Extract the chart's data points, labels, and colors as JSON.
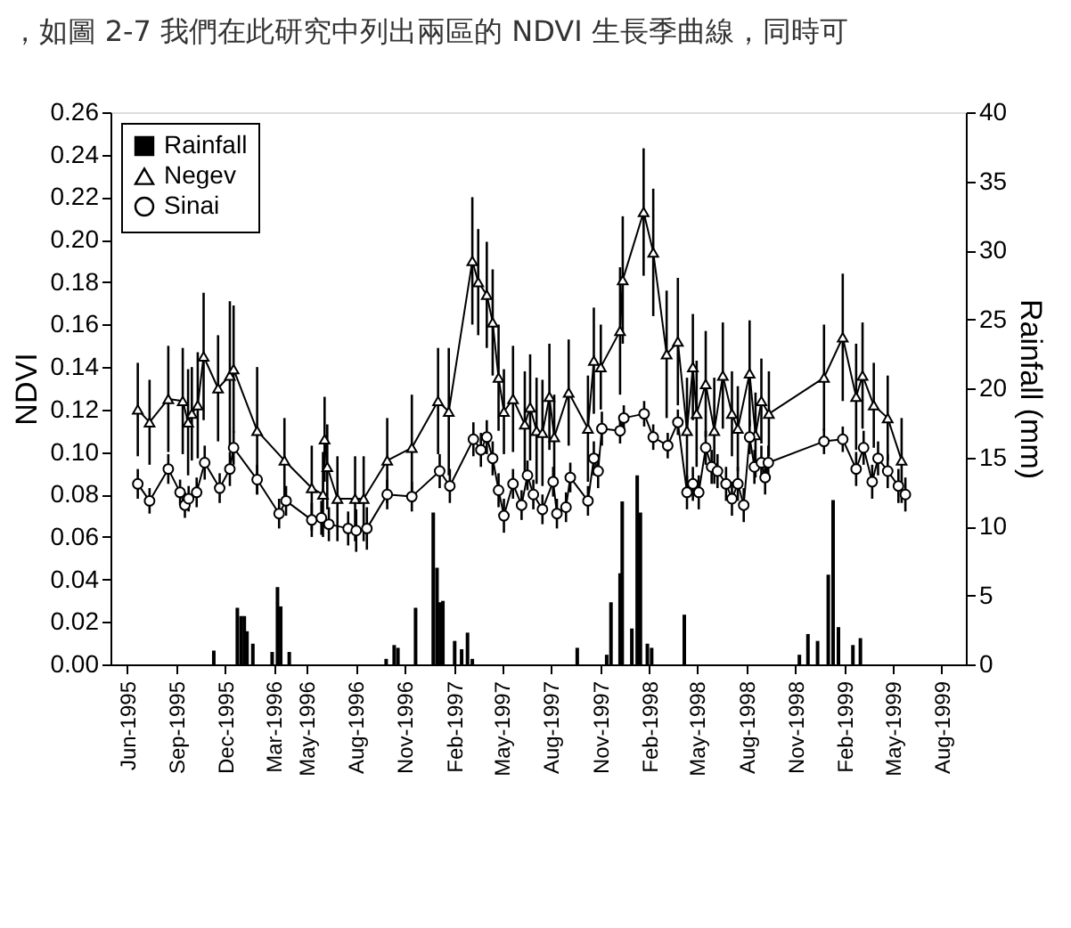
{
  "chart_data": {
    "type": "line",
    "annotations": [
      "，如圖 2-7 我們在此研究中列出兩區的 NDVI 生長季曲線，同時可"
    ],
    "ylabel": "NDVI",
    "y2label": "Rainfall (mm)",
    "xlim": [
      "1995-05-01",
      "1999-09-15"
    ],
    "xticks": [
      {
        "value": "1995-06-01",
        "label": "Jun-1995"
      },
      {
        "value": "1995-09-01",
        "label": "Sep-1995"
      },
      {
        "value": "1995-12-01",
        "label": "Dec-1995"
      },
      {
        "value": "1996-03-01",
        "label": "Mar-1996"
      },
      {
        "value": "1996-05-01",
        "label": "May-1996"
      },
      {
        "value": "1996-08-01",
        "label": "Aug-1996"
      },
      {
        "value": "1996-11-01",
        "label": "Nov-1996"
      },
      {
        "value": "1997-02-01",
        "label": "Feb-1997"
      },
      {
        "value": "1997-05-01",
        "label": "May-1997"
      },
      {
        "value": "1997-08-01",
        "label": "Aug-1997"
      },
      {
        "value": "1997-11-01",
        "label": "Nov-1997"
      },
      {
        "value": "1998-02-01",
        "label": "Feb-1998"
      },
      {
        "value": "1998-05-01",
        "label": "May-1998"
      },
      {
        "value": "1998-08-01",
        "label": "Aug-1998"
      },
      {
        "value": "1998-11-01",
        "label": "Nov-1998"
      },
      {
        "value": "1999-02-01",
        "label": "Feb-1999"
      },
      {
        "value": "1999-05-01",
        "label": "May-1999"
      },
      {
        "value": "1999-08-01",
        "label": "Aug-1999"
      }
    ],
    "ylim": [
      0,
      0.26
    ],
    "yticks": [
      {
        "value": 0,
        "label": "0.00"
      },
      {
        "value": 0.02,
        "label": "0.02"
      },
      {
        "value": 0.04,
        "label": "0.04"
      },
      {
        "value": 0.06,
        "label": "0.06"
      },
      {
        "value": 0.08,
        "label": "0.08"
      },
      {
        "value": 0.1,
        "label": "0.10"
      },
      {
        "value": 0.12,
        "label": "0.12"
      },
      {
        "value": 0.14,
        "label": "0.14"
      },
      {
        "value": 0.16,
        "label": "0.16"
      },
      {
        "value": 0.18,
        "label": "0.18"
      },
      {
        "value": 0.2,
        "label": "0.20"
      },
      {
        "value": 0.22,
        "label": "0.22"
      },
      {
        "value": 0.24,
        "label": "0.24"
      },
      {
        "value": 0.26,
        "label": "0.26"
      }
    ],
    "y2lim": [
      0,
      40
    ],
    "y2ticks": [
      0,
      5,
      10,
      15,
      20,
      25,
      30,
      35,
      40
    ],
    "grid": false,
    "legend": "top left",
    "line_style": "solid",
    "series": [
      {
        "name": "Rainfall",
        "type": "bar",
        "axis": "y2",
        "color": "#000000",
        "marker": "square",
        "x": [
          "1995-11-10",
          "1995-12-24",
          "1995-12-31",
          "1996-01-06",
          "1996-01-11",
          "1996-01-22",
          "1996-02-27",
          "1996-03-08",
          "1996-03-14",
          "1996-03-30",
          "1996-09-27",
          "1996-10-12",
          "1996-10-19",
          "1996-11-21",
          "1996-12-24",
          "1996-12-31",
          "1997-01-06",
          "1997-01-11",
          "1997-02-02",
          "1997-02-15",
          "1997-02-26",
          "1997-03-07",
          "1997-09-19",
          "1997-11-13",
          "1997-11-21",
          "1997-12-08",
          "1997-12-12",
          "1997-12-30",
          "1998-01-09",
          "1998-01-15",
          "1998-01-28",
          "1998-02-05",
          "1998-04-07",
          "1998-11-08",
          "1998-11-24",
          "1998-12-12",
          "1999-01-01",
          "1999-01-10",
          "1999-01-20",
          "1999-02-16",
          "1999-03-02"
        ],
        "values": [
          1.0,
          4.1,
          3.5,
          3.5,
          2.4,
          1.5,
          0.9,
          5.6,
          4.2,
          0.9,
          0.4,
          1.4,
          1.2,
          4.1,
          11.0,
          7.0,
          4.5,
          4.6,
          1.7,
          1.1,
          2.3,
          0.4,
          1.2,
          0.7,
          4.5,
          6.6,
          11.8,
          2.6,
          13.7,
          11.0,
          1.5,
          1.2,
          3.6,
          0.7,
          2.2,
          1.7,
          6.5,
          11.9,
          2.7,
          1.4,
          1.9
        ]
      },
      {
        "name": "Negev",
        "type": "line",
        "marker": "triangle",
        "color": "#000000",
        "x": [
          "1995-06-21",
          "1995-07-13",
          "1995-08-17",
          "1995-09-13",
          "1995-09-23",
          "1995-09-30",
          "1995-10-11",
          "1995-10-22",
          "1995-11-18",
          "1995-12-10",
          "1995-12-17",
          "1996-01-30",
          "1996-03-21",
          "1996-05-11",
          "1996-06-01",
          "1996-06-04",
          "1996-06-09",
          "1996-06-28",
          "1996-07-31",
          "1996-08-16",
          "1996-09-29",
          "1996-11-14",
          "1997-01-02",
          "1997-01-22",
          "1997-03-07",
          "1997-03-18",
          "1997-04-03",
          "1997-04-14",
          "1997-04-25",
          "1997-05-05",
          "1997-05-22",
          "1997-06-13",
          "1997-06-23",
          "1997-07-05",
          "1997-07-16",
          "1997-07-29",
          "1997-08-07",
          "1997-09-03",
          "1997-10-09",
          "1997-10-20",
          "1997-11-02",
          "1997-12-08",
          "1997-12-13",
          "1998-01-21",
          "1998-02-08",
          "1998-03-05",
          "1998-03-26",
          "1998-04-12",
          "1998-04-23",
          "1998-04-30",
          "1998-05-17",
          "1998-06-02",
          "1998-06-18",
          "1998-07-05",
          "1998-07-16",
          "1998-08-07",
          "1998-08-18",
          "1998-08-29",
          "1998-09-12",
          "1998-12-24",
          "1999-01-28",
          "1999-02-22",
          "1999-03-06",
          "1999-03-27",
          "1999-04-22",
          "1999-05-18"
        ],
        "values": [
          0.12,
          0.114,
          0.125,
          0.124,
          0.114,
          0.118,
          0.122,
          0.145,
          0.13,
          0.136,
          0.139,
          0.11,
          0.096,
          0.083,
          0.08,
          0.106,
          0.093,
          0.078,
          0.078,
          0.078,
          0.096,
          0.102,
          0.124,
          0.119,
          0.19,
          0.18,
          0.174,
          0.161,
          0.135,
          0.119,
          0.125,
          0.113,
          0.121,
          0.11,
          0.109,
          0.126,
          0.107,
          0.128,
          0.111,
          0.143,
          0.14,
          0.157,
          0.181,
          0.213,
          0.194,
          0.146,
          0.152,
          0.11,
          0.14,
          0.118,
          0.132,
          0.11,
          0.136,
          0.118,
          0.111,
          0.137,
          0.108,
          0.124,
          0.118,
          0.135,
          0.154,
          0.126,
          0.136,
          0.122,
          0.116,
          0.096
        ],
        "errors": [
          0.022,
          0.02,
          0.025,
          0.025,
          0.025,
          0.022,
          0.025,
          0.03,
          0.025,
          0.035,
          0.03,
          0.03,
          0.02,
          0.02,
          0.02,
          0.02,
          0.02,
          0.02,
          0.02,
          0.02,
          0.02,
          0.025,
          0.025,
          0.03,
          0.03,
          0.025,
          0.025,
          0.025,
          0.025,
          0.02,
          0.025,
          0.025,
          0.025,
          0.025,
          0.025,
          0.025,
          0.02,
          0.025,
          0.025,
          0.025,
          0.02,
          0.03,
          0.03,
          0.03,
          0.03,
          0.03,
          0.03,
          0.025,
          0.025,
          0.025,
          0.025,
          0.025,
          0.025,
          0.02,
          0.02,
          0.025,
          0.02,
          0.02,
          0.02,
          0.025,
          0.03,
          0.025,
          0.025,
          0.02,
          0.02,
          0.02
        ]
      },
      {
        "name": "Sinai",
        "type": "line",
        "marker": "circle",
        "color": "#000000",
        "x": [
          "1995-06-21",
          "1995-07-13",
          "1995-08-17",
          "1995-09-08",
          "1995-09-17",
          "1995-09-24",
          "1995-10-09",
          "1995-10-24",
          "1995-11-21",
          "1995-12-10",
          "1995-12-17",
          "1996-01-30",
          "1996-03-11",
          "1996-03-24",
          "1996-05-11",
          "1996-05-29",
          "1996-06-12",
          "1996-07-18",
          "1996-08-02",
          "1996-08-22",
          "1996-09-29",
          "1996-11-14",
          "1997-01-05",
          "1997-01-24",
          "1997-03-09",
          "1997-03-23",
          "1997-04-03",
          "1997-04-14",
          "1997-04-25",
          "1997-05-05",
          "1997-05-22",
          "1997-06-07",
          "1997-06-18",
          "1997-06-29",
          "1997-07-16",
          "1997-08-05",
          "1997-08-12",
          "1997-08-29",
          "1997-09-06",
          "1997-10-09",
          "1997-10-20",
          "1997-10-28",
          "1997-11-04",
          "1997-12-08",
          "1997-12-15",
          "1998-01-22",
          "1998-02-08",
          "1998-03-07",
          "1998-03-26",
          "1998-04-12",
          "1998-04-23",
          "1998-05-04",
          "1998-05-17",
          "1998-05-28",
          "1998-06-08",
          "1998-06-24",
          "1998-07-05",
          "1998-07-16",
          "1998-07-27",
          "1998-08-07",
          "1998-08-16",
          "1998-08-29",
          "1998-09-05",
          "1998-09-11",
          "1998-12-24",
          "1999-01-28",
          "1999-02-22",
          "1999-03-08",
          "1999-03-24",
          "1999-04-04",
          "1999-04-22",
          "1999-05-12",
          "1999-05-25"
        ],
        "values": [
          0.085,
          0.077,
          0.092,
          0.081,
          0.075,
          0.078,
          0.081,
          0.095,
          0.083,
          0.092,
          0.102,
          0.087,
          0.071,
          0.077,
          0.068,
          0.069,
          0.066,
          0.064,
          0.063,
          0.064,
          0.08,
          0.079,
          0.091,
          0.084,
          0.106,
          0.101,
          0.107,
          0.097,
          0.082,
          0.07,
          0.085,
          0.075,
          0.089,
          0.08,
          0.073,
          0.086,
          0.071,
          0.074,
          0.088,
          0.077,
          0.097,
          0.091,
          0.111,
          0.11,
          0.116,
          0.118,
          0.107,
          0.103,
          0.114,
          0.081,
          0.085,
          0.081,
          0.102,
          0.093,
          0.091,
          0.085,
          0.078,
          0.085,
          0.075,
          0.107,
          0.093,
          0.095,
          0.088,
          0.095,
          0.105,
          0.106,
          0.092,
          0.102,
          0.086,
          0.097,
          0.091,
          0.084,
          0.08
        ],
        "errors": [
          0.007,
          0.006,
          0.007,
          0.006,
          0.006,
          0.006,
          0.007,
          0.008,
          0.007,
          0.008,
          0.008,
          0.007,
          0.007,
          0.007,
          0.008,
          0.008,
          0.008,
          0.008,
          0.01,
          0.01,
          0.007,
          0.007,
          0.008,
          0.008,
          0.008,
          0.008,
          0.008,
          0.008,
          0.008,
          0.008,
          0.007,
          0.007,
          0.007,
          0.007,
          0.007,
          0.007,
          0.007,
          0.007,
          0.007,
          0.007,
          0.008,
          0.008,
          0.008,
          0.006,
          0.006,
          0.006,
          0.006,
          0.006,
          0.006,
          0.008,
          0.008,
          0.008,
          0.008,
          0.008,
          0.008,
          0.008,
          0.008,
          0.008,
          0.008,
          0.008,
          0.008,
          0.008,
          0.008,
          0.008,
          0.006,
          0.006,
          0.008,
          0.008,
          0.008,
          0.008,
          0.008,
          0.008,
          0.008
        ]
      }
    ]
  }
}
